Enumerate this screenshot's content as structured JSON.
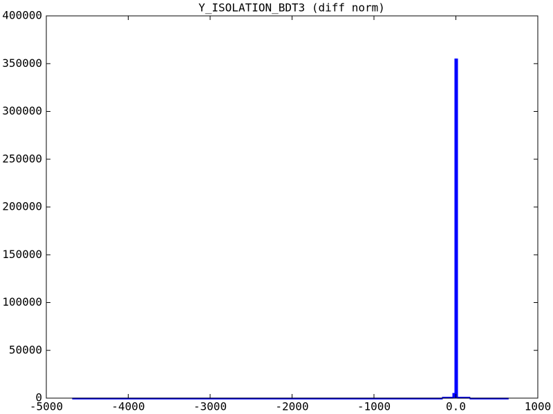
{
  "chart_data": {
    "type": "histogram",
    "title": "Y_ISOLATION_BDT3 (diff norm)",
    "bins": [
      -4680,
      -165,
      -38,
      -13,
      21,
      172,
      640
    ],
    "values": [
      100,
      1000,
      5000,
      355000,
      1000,
      100
    ],
    "color": "#0000ff",
    "xlim": [
      -5000,
      1000
    ],
    "xticks": [
      -5000,
      -4000,
      -3000,
      -2000,
      -1000,
      {
        "value": 0,
        "label": "0.0"
      },
      1000
    ],
    "ylim": [
      0,
      400000
    ],
    "yticks": [
      0,
      50000,
      100000,
      150000,
      200000,
      250000,
      300000,
      350000,
      400000
    ],
    "grid": false
  }
}
